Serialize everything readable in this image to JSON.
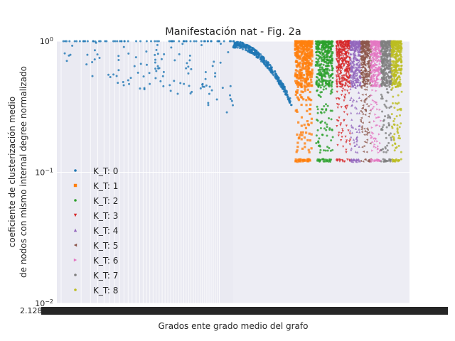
{
  "chart_data": {
    "type": "scatter",
    "title": "Manifestación nat - Fig. 2a",
    "xlabel": "Grados ente grado medio del grafo",
    "ylabel": [
      "coeficiente de clusterización medio",
      "de nodos con mismo internal degree normalizado"
    ],
    "yscale": "log",
    "ylim": [
      0.01,
      1
    ],
    "yticks": [
      {
        "value": 1,
        "label": "10^0"
      },
      {
        "value": 0.1,
        "label": "10^-1"
      },
      {
        "value": 0.01,
        "label": "10^-2"
      }
    ],
    "xticks_note": "categorical x axis; tick labels overlap into an unreadable band",
    "x_first_label": "2.1284132",
    "grid": true,
    "legend_position": "center-left",
    "series": [
      {
        "name": "K_T: 0",
        "color": "#1f77b4",
        "marker": "circle",
        "x_range": [
          0.0,
          0.67
        ],
        "y_range": [
          0.18,
          1.0
        ],
        "count": 520,
        "shape": "sparse-then-decreasing-curve"
      },
      {
        "name": "K_T: 1",
        "color": "#ff7f0e",
        "marker": "square",
        "x_range": [
          0.68,
          0.73
        ],
        "y_range": [
          0.12,
          1.0
        ],
        "count": 450,
        "shape": "band"
      },
      {
        "name": "K_T: 2",
        "color": "#2ca02c",
        "marker": "circle",
        "x_range": [
          0.74,
          0.79
        ],
        "y_range": [
          0.12,
          1.0
        ],
        "count": 450,
        "shape": "band"
      },
      {
        "name": "K_T: 3",
        "color": "#d62728",
        "marker": "triangle-down",
        "x_range": [
          0.8,
          0.84
        ],
        "y_range": [
          0.12,
          1.0
        ],
        "count": 420,
        "shape": "band"
      },
      {
        "name": "K_T: 4",
        "color": "#9467bd",
        "marker": "triangle-up",
        "x_range": [
          0.84,
          0.87
        ],
        "y_range": [
          0.12,
          1.0
        ],
        "count": 380,
        "shape": "band"
      },
      {
        "name": "K_T: 5",
        "color": "#8c564b",
        "marker": "triangle-left",
        "x_range": [
          0.87,
          0.9
        ],
        "y_range": [
          0.12,
          1.0
        ],
        "count": 380,
        "shape": "band"
      },
      {
        "name": "K_T: 6",
        "color": "#e377c2",
        "marker": "triangle-right",
        "x_range": [
          0.9,
          0.93
        ],
        "y_range": [
          0.12,
          1.0
        ],
        "count": 380,
        "shape": "band"
      },
      {
        "name": "K_T: 7",
        "color": "#7f7f7f",
        "marker": "circle",
        "x_range": [
          0.93,
          0.96
        ],
        "y_range": [
          0.12,
          1.0
        ],
        "count": 360,
        "shape": "band"
      },
      {
        "name": "K_T: 8",
        "color": "#bcbd22",
        "marker": "circle",
        "x_range": [
          0.96,
          0.99
        ],
        "y_range": [
          0.12,
          1.0
        ],
        "count": 360,
        "shape": "band"
      }
    ]
  }
}
